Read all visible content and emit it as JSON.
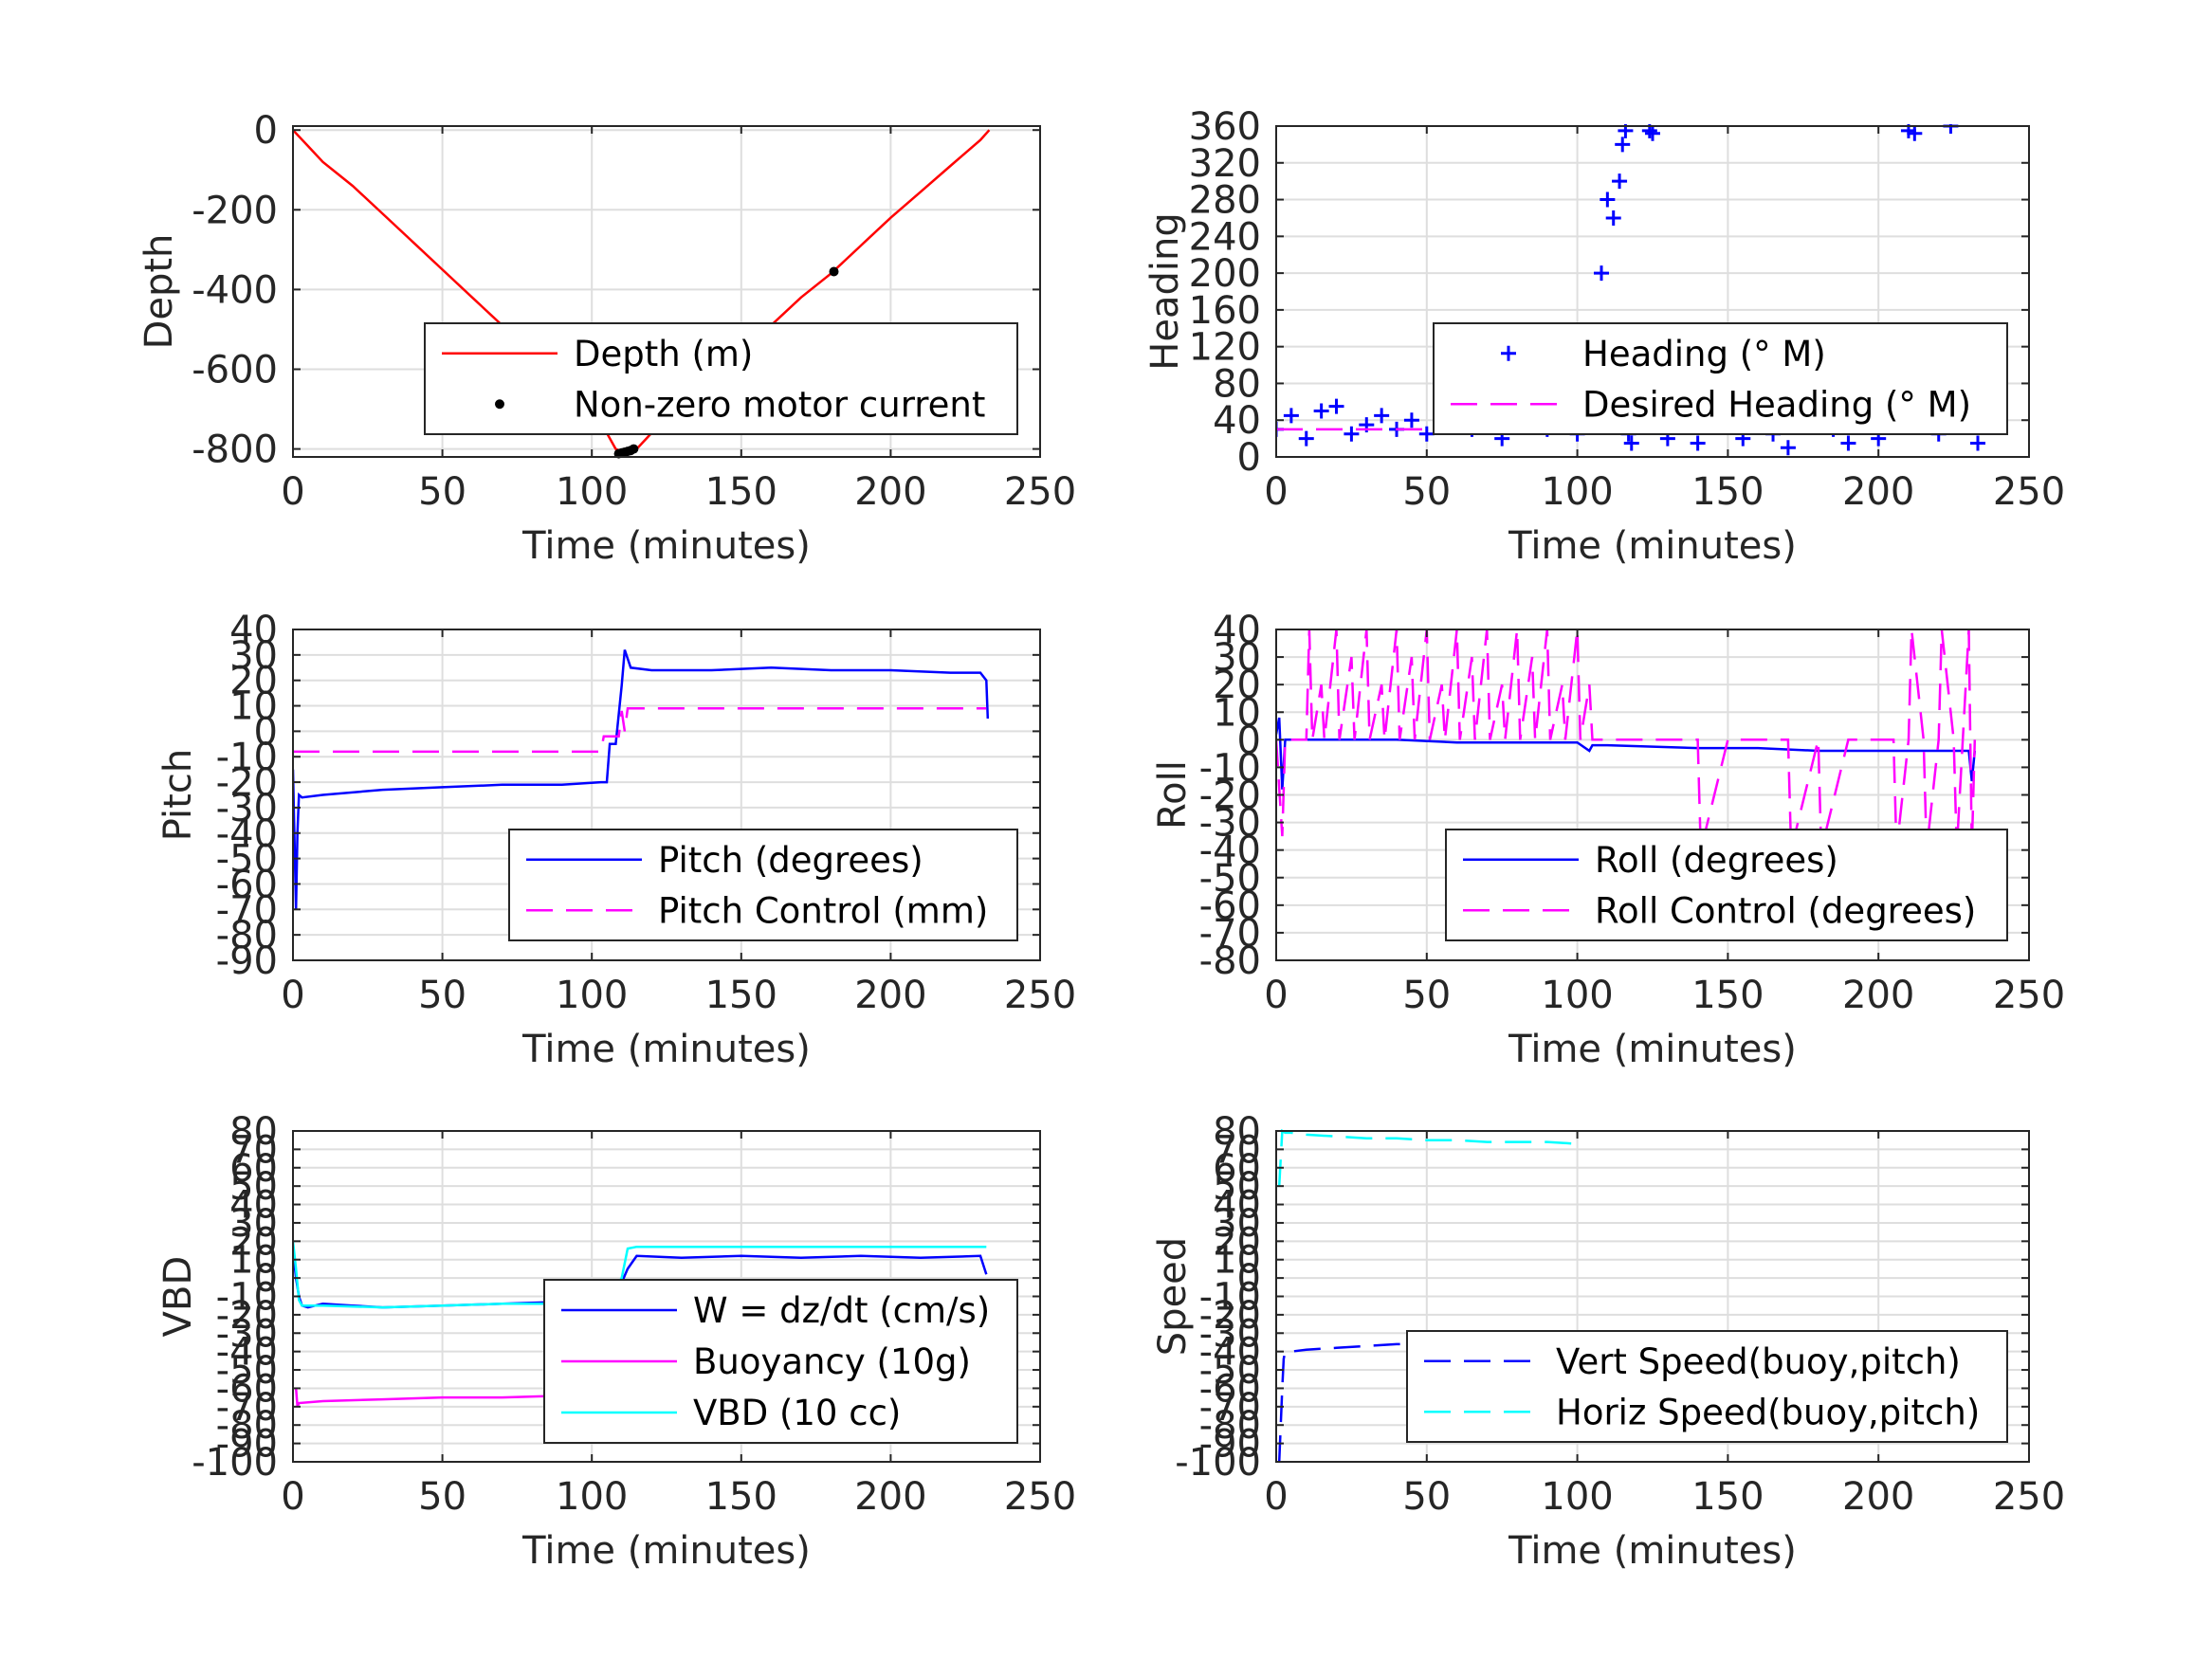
{
  "chart_data": [
    {
      "id": "depth",
      "type": "line",
      "xlabel": "Time (minutes)",
      "ylabel": "Depth",
      "xlim": [
        0,
        250
      ],
      "ylim": [
        -820,
        10
      ],
      "xticks": [
        "0",
        "50",
        "100",
        "150",
        "200",
        "250"
      ],
      "yticks": [
        {
          "v": 0,
          "t": "0"
        },
        {
          "v": -200,
          "t": "-200"
        },
        {
          "v": -400,
          "t": "-400"
        },
        {
          "v": -600,
          "t": "-600"
        },
        {
          "v": -800,
          "t": "-800"
        }
      ],
      "grid": true,
      "legend_placement": "lower-right",
      "series": [
        {
          "name": "Depth (m)",
          "style": "line",
          "color": "#ff0000",
          "x": [
            0,
            5,
            10,
            15,
            20,
            30,
            40,
            50,
            60,
            70,
            80,
            90,
            100,
            105,
            108,
            111,
            113,
            115,
            120,
            130,
            140,
            150,
            160,
            170,
            180,
            190,
            200,
            210,
            220,
            230,
            233
          ],
          "y": [
            0,
            -40,
            -80,
            -110,
            -140,
            -210,
            -280,
            -350,
            -420,
            -490,
            -560,
            -630,
            -700,
            -760,
            -800,
            -810,
            -808,
            -800,
            -760,
            -700,
            -630,
            -560,
            -490,
            -420,
            -360,
            -290,
            -220,
            -155,
            -90,
            -25,
            0
          ]
        },
        {
          "name": "Non-zero motor current",
          "style": "dots",
          "color": "#000000",
          "x": [
            109,
            110,
            111,
            112,
            113,
            114,
            138,
            181
          ],
          "y": [
            -812,
            -810,
            -808,
            -806,
            -804,
            -800,
            -650,
            -355
          ]
        }
      ]
    },
    {
      "id": "heading",
      "type": "scatter",
      "xlabel": "Time (minutes)",
      "ylabel": "Heading",
      "xlim": [
        0,
        250
      ],
      "ylim": [
        0,
        360
      ],
      "xticks": [
        "0",
        "50",
        "100",
        "150",
        "200",
        "250"
      ],
      "yticks": [
        {
          "v": 0,
          "t": "0"
        },
        {
          "v": 40,
          "t": "40"
        },
        {
          "v": 80,
          "t": "80"
        },
        {
          "v": 120,
          "t": "120"
        },
        {
          "v": 160,
          "t": "160"
        },
        {
          "v": 200,
          "t": "200"
        },
        {
          "v": 240,
          "t": "240"
        },
        {
          "v": 280,
          "t": "280"
        },
        {
          "v": 320,
          "t": "320"
        },
        {
          "v": 360,
          "t": "360"
        }
      ],
      "grid": true,
      "legend_placement": "lower-right",
      "series": [
        {
          "name": "Heading (° M)",
          "style": "plus",
          "color": "#0000ff",
          "x": [
            0,
            5,
            10,
            15,
            20,
            25,
            30,
            35,
            40,
            45,
            50,
            55,
            60,
            65,
            70,
            75,
            80,
            85,
            90,
            95,
            100,
            103,
            105,
            107,
            108,
            110,
            112,
            114,
            115,
            116,
            117,
            118,
            120,
            124,
            125,
            130,
            135,
            140,
            145,
            150,
            155,
            160,
            165,
            170,
            175,
            180,
            182,
            185,
            190,
            195,
            200,
            205,
            210,
            212,
            215,
            220,
            224,
            225,
            228,
            230,
            233
          ],
          "y": [
            30,
            45,
            20,
            50,
            55,
            25,
            35,
            45,
            30,
            40,
            25,
            35,
            50,
            30,
            45,
            20,
            40,
            55,
            30,
            35,
            25,
            40,
            60,
            120,
            200,
            280,
            260,
            300,
            340,
            355,
            25,
            15,
            40,
            355,
            352,
            20,
            45,
            15,
            35,
            50,
            20,
            40,
            25,
            10,
            45,
            70,
            65,
            30,
            15,
            50,
            20,
            40,
            355,
            352,
            35,
            25,
            360,
            60,
            95,
            40,
            15
          ]
        },
        {
          "name": "Desired Heading (° M)",
          "style": "dashed",
          "color": "#ff00ff",
          "x": [
            0,
            105,
            106,
            233
          ],
          "y": [
            30,
            30,
            28,
            28
          ]
        }
      ]
    },
    {
      "id": "pitch",
      "type": "line",
      "xlabel": "Time (minutes)",
      "ylabel": "Pitch",
      "xlim": [
        0,
        250
      ],
      "ylim": [
        -90,
        40
      ],
      "xticks": [
        "0",
        "50",
        "100",
        "150",
        "200",
        "250"
      ],
      "yticks": [
        {
          "v": 40,
          "t": "40"
        },
        {
          "v": 30,
          "t": "30"
        },
        {
          "v": 20,
          "t": "20"
        },
        {
          "v": 10,
          "t": "10"
        },
        {
          "v": 0,
          "t": "0"
        },
        {
          "v": -10,
          "t": "-10"
        },
        {
          "v": -20,
          "t": "-20"
        },
        {
          "v": -30,
          "t": "-30"
        },
        {
          "v": -40,
          "t": "-40"
        },
        {
          "v": -50,
          "t": "-50"
        },
        {
          "v": -60,
          "t": "-60"
        },
        {
          "v": -70,
          "t": "-70"
        },
        {
          "v": -80,
          "t": "-80"
        },
        {
          "v": -90,
          "t": "-90"
        }
      ],
      "grid": true,
      "legend_placement": "lower-right",
      "series": [
        {
          "name": "Pitch (degrees)",
          "style": "line",
          "color": "#0000ff",
          "x": [
            0,
            1,
            1.5,
            2,
            3,
            10,
            30,
            50,
            70,
            90,
            103,
            105,
            106,
            108,
            110,
            111,
            113,
            120,
            140,
            160,
            180,
            200,
            220,
            230,
            232,
            232.5
          ],
          "y": [
            -15,
            -70,
            -40,
            -25,
            -26,
            -25,
            -23,
            -22,
            -21,
            -21,
            -20,
            -20,
            -5,
            -5,
            18,
            32,
            25,
            24,
            24,
            25,
            24,
            24,
            23,
            23,
            20,
            5
          ]
        },
        {
          "name": "Pitch Control (mm)",
          "style": "dashed",
          "color": "#ff00ff",
          "x": [
            0,
            103,
            104,
            109,
            110,
            111,
            112,
            232
          ],
          "y": [
            -8,
            -8,
            -2,
            -2,
            8,
            0,
            9,
            9
          ]
        }
      ]
    },
    {
      "id": "roll",
      "type": "line",
      "xlabel": "Time (minutes)",
      "ylabel": "Roll",
      "xlim": [
        0,
        250
      ],
      "ylim": [
        -80,
        40
      ],
      "xticks": [
        "0",
        "50",
        "100",
        "150",
        "200",
        "250"
      ],
      "yticks": [
        {
          "v": 40,
          "t": "40"
        },
        {
          "v": 30,
          "t": "30"
        },
        {
          "v": 20,
          "t": "20"
        },
        {
          "v": 10,
          "t": "10"
        },
        {
          "v": 0,
          "t": "0"
        },
        {
          "v": -10,
          "t": "-10"
        },
        {
          "v": -20,
          "t": "-20"
        },
        {
          "v": -30,
          "t": "-30"
        },
        {
          "v": -40,
          "t": "-40"
        },
        {
          "v": -50,
          "t": "-50"
        },
        {
          "v": -60,
          "t": "-60"
        },
        {
          "v": -70,
          "t": "-70"
        },
        {
          "v": -80,
          "t": "-80"
        }
      ],
      "grid": true,
      "legend_placement": "lower-right",
      "series": [
        {
          "name": "Roll (degrees)",
          "style": "line",
          "color": "#0000ff",
          "x": [
            0,
            1,
            2,
            3,
            4,
            10,
            20,
            40,
            60,
            80,
            100,
            104,
            105,
            110,
            140,
            160,
            180,
            200,
            220,
            230,
            231,
            232
          ],
          "y": [
            2,
            8,
            -18,
            0,
            0,
            0,
            0,
            0,
            -1,
            -1,
            -1,
            -4,
            -2,
            -2,
            -3,
            -3,
            -4,
            -4,
            -4,
            -4,
            -15,
            -4
          ]
        },
        {
          "name": "Roll Control (degrees)",
          "style": "dashed",
          "color": "#ff00ff",
          "x": [
            0,
            2,
            3,
            4,
            10,
            11,
            12,
            15,
            16,
            20,
            21,
            25,
            26,
            30,
            31,
            35,
            36,
            40,
            41,
            45,
            46,
            50,
            51,
            55,
            56,
            60,
            61,
            65,
            66,
            70,
            71,
            75,
            76,
            80,
            81,
            85,
            86,
            90,
            91,
            95,
            96,
            100,
            101,
            104,
            105,
            110,
            120,
            130,
            140,
            141,
            150,
            160,
            170,
            171,
            180,
            181,
            190,
            200,
            205,
            206,
            210,
            211,
            215,
            216,
            220,
            221,
            225,
            226,
            230,
            231,
            232
          ],
          "y": [
            0,
            -35,
            0,
            0,
            0,
            40,
            0,
            20,
            0,
            40,
            0,
            30,
            0,
            40,
            0,
            20,
            0,
            40,
            0,
            30,
            0,
            40,
            0,
            20,
            0,
            40,
            0,
            30,
            0,
            40,
            0,
            20,
            0,
            40,
            0,
            30,
            0,
            40,
            0,
            20,
            0,
            40,
            0,
            20,
            0,
            0,
            0,
            0,
            0,
            -40,
            0,
            0,
            0,
            -40,
            0,
            -40,
            0,
            0,
            0,
            -40,
            0,
            40,
            0,
            -40,
            0,
            40,
            0,
            -40,
            40,
            -40,
            0
          ]
        }
      ]
    },
    {
      "id": "vbd",
      "type": "line",
      "xlabel": "Time (minutes)",
      "ylabel": "VBD",
      "xlim": [
        0,
        250
      ],
      "ylim": [
        -100,
        80
      ],
      "xticks": [
        "0",
        "50",
        "100",
        "150",
        "200",
        "250"
      ],
      "yticks": [
        {
          "v": 80,
          "t": "80"
        },
        {
          "v": 70,
          "t": "70"
        },
        {
          "v": 60,
          "t": "60"
        },
        {
          "v": 50,
          "t": "50"
        },
        {
          "v": 40,
          "t": "40"
        },
        {
          "v": 30,
          "t": "30"
        },
        {
          "v": 20,
          "t": "20"
        },
        {
          "v": 10,
          "t": "10"
        },
        {
          "v": 0,
          "t": "0"
        },
        {
          "v": -10,
          "t": "-10"
        },
        {
          "v": -20,
          "t": "-20"
        },
        {
          "v": -30,
          "t": "-30"
        },
        {
          "v": -40,
          "t": "-40"
        },
        {
          "v": -50,
          "t": "-50"
        },
        {
          "v": -60,
          "t": "-60"
        },
        {
          "v": -70,
          "t": "-70"
        },
        {
          "v": -80,
          "t": "-80"
        },
        {
          "v": -90,
          "t": "-90"
        },
        {
          "v": -100,
          "t": "-100"
        }
      ],
      "grid": true,
      "legend_placement": "lower-right",
      "series": [
        {
          "name": "W = dz/dt (cm/s)",
          "style": "line",
          "color": "#0000ff",
          "x": [
            0,
            1,
            2,
            3,
            5,
            10,
            20,
            30,
            50,
            70,
            90,
            105,
            108,
            112,
            115,
            130,
            150,
            170,
            190,
            210,
            230,
            232
          ],
          "y": [
            15,
            0,
            -10,
            -15,
            -16,
            -14,
            -15,
            -16,
            -15,
            -14,
            -13,
            -13,
            -10,
            5,
            12,
            11,
            12,
            11,
            12,
            11,
            12,
            2
          ]
        },
        {
          "name": "Buoyancy (10g)",
          "style": "line",
          "color": "#ff00ff",
          "x": [
            1,
            1.5,
            2,
            10,
            30,
            50,
            70,
            90,
            104
          ],
          "y": [
            -60,
            -70,
            -68,
            -67,
            -66,
            -65,
            -65,
            -64,
            -64
          ]
        },
        {
          "name": "VBD (10 cc)",
          "style": "line",
          "color": "#00ffff",
          "x": [
            0,
            1,
            2,
            3,
            10,
            30,
            50,
            70,
            90,
            104,
            105,
            110,
            112,
            115,
            150,
            200,
            232
          ],
          "y": [
            20,
            5,
            -12,
            -15,
            -15,
            -16,
            -15,
            -14,
            -14,
            -14,
            -12,
            0,
            16,
            17,
            17,
            17,
            17
          ]
        }
      ]
    },
    {
      "id": "speed",
      "type": "line",
      "xlabel": "Time (minutes)",
      "ylabel": "Speed",
      "xlim": [
        0,
        250
      ],
      "ylim": [
        -100,
        80
      ],
      "xticks": [
        "0",
        "50",
        "100",
        "150",
        "200",
        "250"
      ],
      "yticks": [
        {
          "v": 80,
          "t": "80"
        },
        {
          "v": 70,
          "t": "70"
        },
        {
          "v": 60,
          "t": "60"
        },
        {
          "v": 50,
          "t": "50"
        },
        {
          "v": 40,
          "t": "40"
        },
        {
          "v": 30,
          "t": "30"
        },
        {
          "v": 20,
          "t": "20"
        },
        {
          "v": 10,
          "t": "10"
        },
        {
          "v": 0,
          "t": "0"
        },
        {
          "v": -10,
          "t": "-10"
        },
        {
          "v": -20,
          "t": "-20"
        },
        {
          "v": -30,
          "t": "-30"
        },
        {
          "v": -40,
          "t": "-40"
        },
        {
          "v": -50,
          "t": "-50"
        },
        {
          "v": -60,
          "t": "-60"
        },
        {
          "v": -70,
          "t": "-70"
        },
        {
          "v": -80,
          "t": "-80"
        },
        {
          "v": -90,
          "t": "-90"
        },
        {
          "v": -100,
          "t": "-100"
        }
      ],
      "grid": true,
      "legend_placement": "lower-right",
      "series": [
        {
          "name": "Vert Speed(buoy,pitch)",
          "style": "dashed",
          "color": "#0000ff",
          "x": [
            1,
            1.5,
            2,
            2.5,
            3,
            5,
            10,
            20,
            30,
            40,
            50,
            60,
            70,
            80,
            90,
            100
          ],
          "y": [
            -100,
            -80,
            -60,
            -44,
            -40,
            -40,
            -39,
            -38,
            -37,
            -36,
            -36,
            -35,
            -35,
            -34,
            -34,
            -33
          ]
        },
        {
          "name": "Horiz Speed(buoy,pitch)",
          "style": "dashed",
          "color": "#00ffff",
          "x": [
            1,
            1.5,
            2,
            3,
            5,
            10,
            20,
            30,
            40,
            50,
            60,
            70,
            80,
            90,
            100
          ],
          "y": [
            50,
            65,
            80,
            79,
            79,
            78,
            77,
            76,
            76,
            75,
            75,
            74,
            74,
            74,
            73
          ]
        }
      ]
    }
  ]
}
